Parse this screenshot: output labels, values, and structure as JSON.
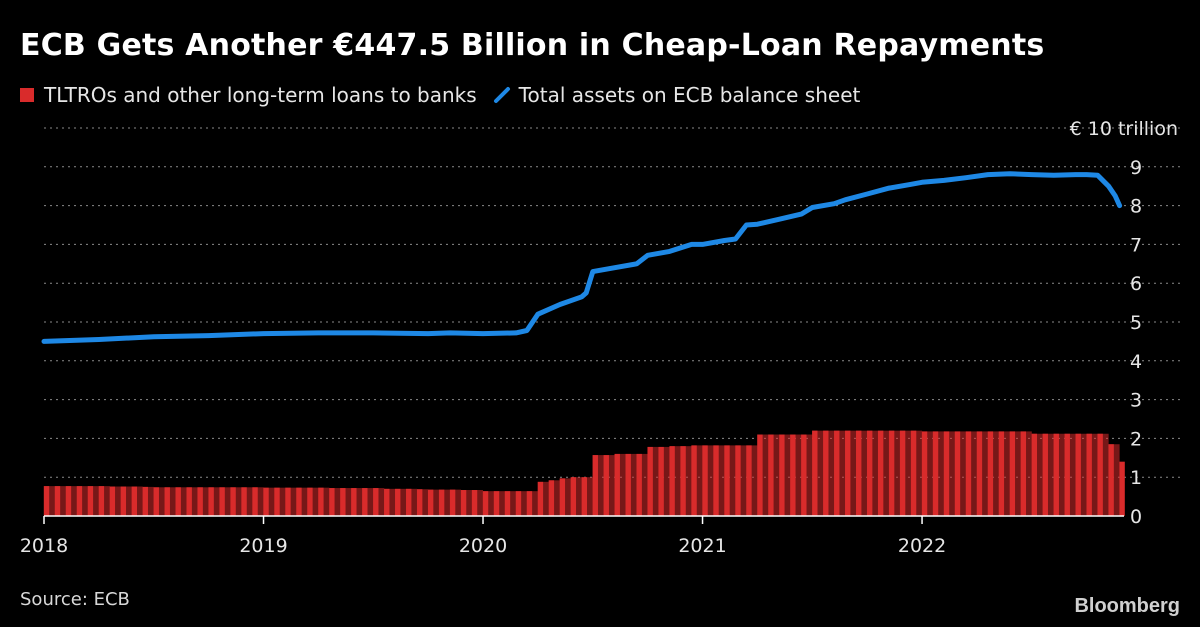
{
  "title": "ECB Gets Another €447.5 Billion in Cheap-Loan Repayments",
  "legend": {
    "bars_label": "TLTROs and other long-term loans to banks",
    "line_label": "Total assets on ECB balance sheet"
  },
  "source": "Source: ECB",
  "logo": "Bloomberg",
  "colors": {
    "bars": "#d92b2b",
    "line": "#1e88e5",
    "grid": "#8a8a8a",
    "background": "#000000"
  },
  "chart_data": {
    "type": "bar+line",
    "y_unit_label": "€ 10 trillion",
    "ylim": [
      0,
      10
    ],
    "y_ticks": [
      0,
      1,
      2,
      3,
      4,
      5,
      6,
      7,
      8,
      9,
      10
    ],
    "y_tick_labels": [
      "0",
      "1",
      "2",
      "3",
      "4",
      "5",
      "6",
      "7",
      "8",
      "9",
      ""
    ],
    "y_axis_side": "right",
    "grid": true,
    "xlim": [
      2018.0,
      2022.92
    ],
    "x_ticks": [
      2018,
      2019,
      2020,
      2021,
      2022
    ],
    "x_tick_labels": [
      "2018",
      "2019",
      "2020",
      "2021",
      "2022"
    ],
    "series": [
      {
        "name": "TLTROs and other long-term loans to banks",
        "kind": "bar",
        "x": [
          2018.0,
          2018.05,
          2018.1,
          2018.15,
          2018.2,
          2018.25,
          2018.3,
          2018.35,
          2018.4,
          2018.45,
          2018.5,
          2018.55,
          2018.6,
          2018.65,
          2018.7,
          2018.75,
          2018.8,
          2018.85,
          2018.9,
          2018.95,
          2019.0,
          2019.05,
          2019.1,
          2019.15,
          2019.2,
          2019.25,
          2019.3,
          2019.35,
          2019.4,
          2019.45,
          2019.5,
          2019.55,
          2019.6,
          2019.65,
          2019.7,
          2019.75,
          2019.8,
          2019.85,
          2019.9,
          2019.95,
          2020.0,
          2020.05,
          2020.1,
          2020.15,
          2020.2,
          2020.25,
          2020.3,
          2020.35,
          2020.4,
          2020.45,
          2020.5,
          2020.55,
          2020.6,
          2020.65,
          2020.7,
          2020.75,
          2020.8,
          2020.85,
          2020.9,
          2020.95,
          2021.0,
          2021.05,
          2021.1,
          2021.15,
          2021.2,
          2021.25,
          2021.3,
          2021.35,
          2021.4,
          2021.45,
          2021.5,
          2021.55,
          2021.6,
          2021.65,
          2021.7,
          2021.75,
          2021.8,
          2021.85,
          2021.9,
          2021.95,
          2022.0,
          2022.05,
          2022.1,
          2022.15,
          2022.2,
          2022.25,
          2022.3,
          2022.35,
          2022.4,
          2022.45,
          2022.5,
          2022.55,
          2022.6,
          2022.65,
          2022.7,
          2022.75,
          2022.8,
          2022.85,
          2022.9
        ],
        "values": [
          0.77,
          0.77,
          0.77,
          0.77,
          0.77,
          0.77,
          0.76,
          0.76,
          0.76,
          0.75,
          0.74,
          0.74,
          0.74,
          0.74,
          0.74,
          0.74,
          0.74,
          0.74,
          0.74,
          0.74,
          0.73,
          0.73,
          0.73,
          0.73,
          0.73,
          0.73,
          0.72,
          0.72,
          0.72,
          0.72,
          0.72,
          0.7,
          0.7,
          0.7,
          0.69,
          0.68,
          0.68,
          0.68,
          0.67,
          0.67,
          0.64,
          0.64,
          0.64,
          0.64,
          0.64,
          0.88,
          0.92,
          0.97,
          1.0,
          1.0,
          1.57,
          1.57,
          1.6,
          1.6,
          1.6,
          1.78,
          1.78,
          1.8,
          1.8,
          1.82,
          1.82,
          1.82,
          1.82,
          1.82,
          1.82,
          2.1,
          2.1,
          2.1,
          2.1,
          2.1,
          2.2,
          2.2,
          2.2,
          2.2,
          2.2,
          2.2,
          2.2,
          2.2,
          2.2,
          2.2,
          2.18,
          2.18,
          2.18,
          2.18,
          2.18,
          2.18,
          2.18,
          2.18,
          2.18,
          2.18,
          2.12,
          2.12,
          2.12,
          2.12,
          2.12,
          2.12,
          2.12,
          1.85,
          1.4
        ]
      },
      {
        "name": "Total assets on ECB balance sheet",
        "kind": "line",
        "x": [
          2018.0,
          2018.1,
          2018.25,
          2018.5,
          2018.75,
          2019.0,
          2019.25,
          2019.5,
          2019.75,
          2019.85,
          2020.0,
          2020.15,
          2020.2,
          2020.25,
          2020.35,
          2020.45,
          2020.47,
          2020.5,
          2020.6,
          2020.7,
          2020.75,
          2020.85,
          2020.95,
          2021.0,
          2021.1,
          2021.15,
          2021.2,
          2021.25,
          2021.35,
          2021.45,
          2021.5,
          2021.6,
          2021.65,
          2021.75,
          2021.85,
          2021.95,
          2022.0,
          2022.1,
          2022.2,
          2022.3,
          2022.4,
          2022.5,
          2022.6,
          2022.7,
          2022.75,
          2022.8,
          2022.85,
          2022.88,
          2022.9
        ],
        "values": [
          4.5,
          4.52,
          4.55,
          4.62,
          4.65,
          4.7,
          4.72,
          4.72,
          4.7,
          4.72,
          4.7,
          4.72,
          4.78,
          5.2,
          5.45,
          5.65,
          5.75,
          6.3,
          6.4,
          6.5,
          6.72,
          6.82,
          7.0,
          7.0,
          7.1,
          7.14,
          7.5,
          7.52,
          7.65,
          7.78,
          7.95,
          8.05,
          8.15,
          8.3,
          8.45,
          8.55,
          8.6,
          8.65,
          8.72,
          8.8,
          8.82,
          8.8,
          8.78,
          8.8,
          8.8,
          8.78,
          8.5,
          8.25,
          8.0
        ]
      }
    ]
  }
}
